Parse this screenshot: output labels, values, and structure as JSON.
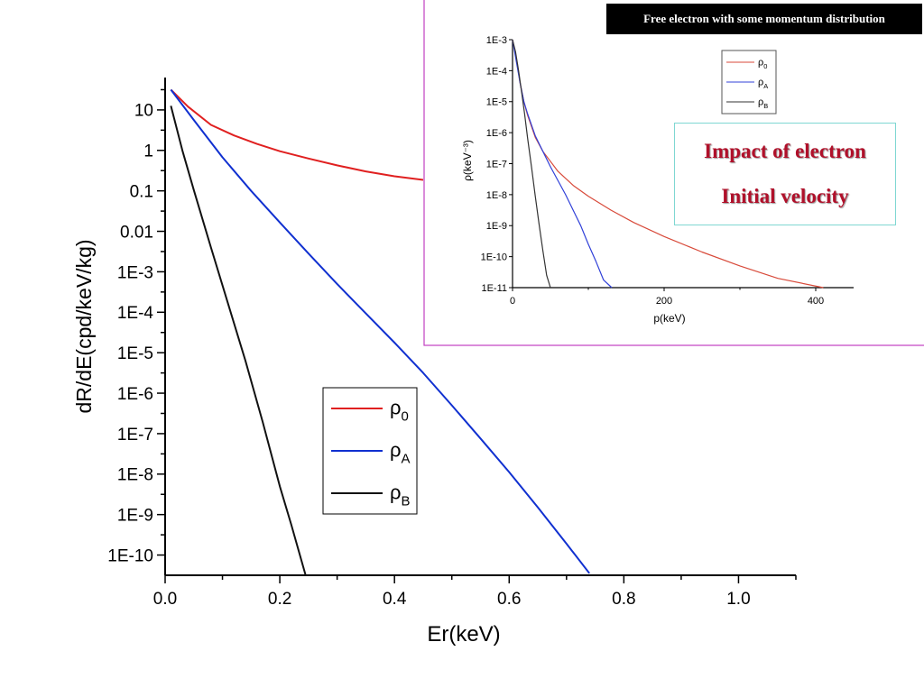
{
  "banner": "Free electron with some momentum distribution",
  "callout": {
    "line1": "Impact of electron",
    "line2": "Initial velocity"
  },
  "chart_data": [
    {
      "type": "line",
      "xlabel": "Er(keV)",
      "ylabel": "dR/dE(cpd/keV/kg)",
      "xlim": [
        0.0,
        1.1
      ],
      "ylim_log10": [
        -10.5,
        1.8
      ],
      "y_scale": "log",
      "x_ticks": [
        "0.0",
        "0.2",
        "0.4",
        "0.6",
        "0.8",
        "1.0"
      ],
      "x_tick_values": [
        0.0,
        0.2,
        0.4,
        0.6,
        0.8,
        1.0
      ],
      "y_ticks": [
        "10",
        "1",
        "0.1",
        "0.01",
        "1E-3",
        "1E-4",
        "1E-5",
        "1E-6",
        "1E-7",
        "1E-8",
        "1E-9",
        "1E-10"
      ],
      "y_tick_exponents": [
        1,
        0,
        -1,
        -2,
        -3,
        -4,
        -5,
        -6,
        -7,
        -8,
        -9,
        -10
      ],
      "legend": "center",
      "grid": false,
      "series": [
        {
          "name": "ρ0",
          "symbol": "ρ",
          "sub": "0",
          "color": "#e02020",
          "x": [
            0.01,
            0.04,
            0.08,
            0.12,
            0.16,
            0.2,
            0.25,
            0.3,
            0.35,
            0.4,
            0.45
          ],
          "y_log10": [
            1.5,
            1.08,
            0.63,
            0.37,
            0.16,
            -0.02,
            -0.2,
            -0.37,
            -0.52,
            -0.64,
            -0.73
          ]
        },
        {
          "name": "ρA",
          "symbol": "ρ",
          "sub": "A",
          "color": "#1030d0",
          "x": [
            0.01,
            0.05,
            0.1,
            0.15,
            0.2,
            0.25,
            0.3,
            0.35,
            0.4,
            0.45,
            0.5,
            0.55,
            0.6,
            0.65,
            0.7,
            0.74
          ],
          "y_log10": [
            1.5,
            0.75,
            -0.17,
            -1.0,
            -1.78,
            -2.55,
            -3.3,
            -4.03,
            -4.75,
            -5.5,
            -6.3,
            -7.12,
            -7.95,
            -8.82,
            -9.72,
            -10.45
          ]
        },
        {
          "name": "ρB",
          "symbol": "ρ",
          "sub": "B",
          "color": "#111111",
          "x": [
            0.01,
            0.03,
            0.05,
            0.08,
            0.11,
            0.14,
            0.17,
            0.2,
            0.22,
            0.245
          ],
          "y_log10": [
            1.1,
            0.0,
            -0.98,
            -2.4,
            -3.8,
            -5.2,
            -6.7,
            -8.3,
            -9.25,
            -10.5
          ]
        }
      ]
    },
    {
      "type": "line",
      "xlabel": "p(keV)",
      "ylabel": "ρ(keV⁻³)",
      "xlim": [
        0,
        450
      ],
      "ylim_log10": [
        -11,
        -3
      ],
      "y_scale": "log",
      "x_ticks": [
        "0",
        "200",
        "400"
      ],
      "x_tick_values": [
        0,
        200,
        400
      ],
      "y_ticks": [
        "1E-3",
        "1E-4",
        "1E-5",
        "1E-6",
        "1E-7",
        "1E-8",
        "1E-9",
        "1E-10",
        "1E-11"
      ],
      "y_tick_exponents": [
        -3,
        -4,
        -5,
        -6,
        -7,
        -8,
        -9,
        -10,
        -11
      ],
      "legend": "top-right",
      "grid": false,
      "series": [
        {
          "name": "ρ0",
          "symbol": "ρ",
          "sub": "0",
          "color": "#d84a3a",
          "x": [
            0,
            5,
            10,
            15,
            20,
            30,
            40,
            60,
            80,
            100,
            130,
            160,
            200,
            250,
            300,
            350,
            410
          ],
          "y_log10": [
            -3,
            -3.6,
            -4.4,
            -5.0,
            -5.45,
            -6.15,
            -6.6,
            -7.25,
            -7.7,
            -8.05,
            -8.5,
            -8.9,
            -9.35,
            -9.85,
            -10.3,
            -10.7,
            -11.2
          ]
        },
        {
          "name": "ρA",
          "symbol": "ρ",
          "sub": "A",
          "color": "#3040d8",
          "x": [
            0,
            5,
            10,
            15,
            20,
            30,
            40,
            50,
            60,
            70,
            80,
            90,
            100,
            110,
            120,
            131
          ],
          "y_log10": [
            -3,
            -3.7,
            -4.4,
            -5.0,
            -5.4,
            -6.1,
            -6.6,
            -7.1,
            -7.55,
            -8.0,
            -8.5,
            -9.0,
            -9.6,
            -10.15,
            -10.75,
            -11.3
          ]
        },
        {
          "name": "ρB",
          "symbol": "ρ",
          "sub": "B",
          "color": "#333333",
          "x": [
            0,
            4,
            8,
            12,
            16,
            20,
            25,
            30,
            35,
            40,
            45,
            50
          ],
          "y_log10": [
            -3,
            -3.4,
            -4.0,
            -4.7,
            -5.4,
            -6.2,
            -7.1,
            -8.05,
            -8.95,
            -9.8,
            -10.6,
            -11.2
          ]
        }
      ]
    }
  ]
}
